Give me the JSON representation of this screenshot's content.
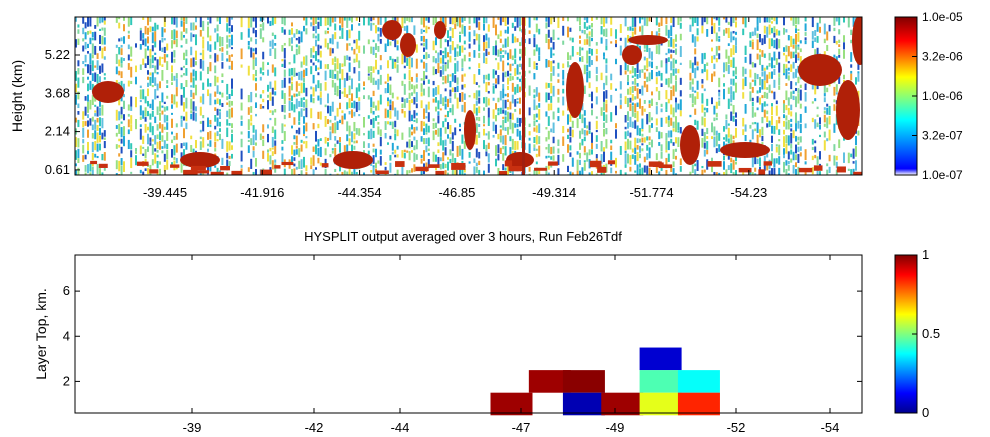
{
  "chart_data": [
    {
      "type": "heatmap",
      "title": "",
      "xlabel": "",
      "ylabel": "Height (km)",
      "x_ticks": [
        "-39.445",
        "-41.916",
        "-44.354",
        "-46.85",
        "-49.314",
        "-51.774",
        "-54.23"
      ],
      "y_ticks": [
        "5.22",
        "3.68",
        "2.14",
        "0.61"
      ],
      "colorbar_ticks": [
        "1.0e-05",
        "3.2e-06",
        "1.0e-06",
        "3.2e-07",
        "1.0e-07"
      ],
      "colorbar_scale": "log",
      "grid": false
    },
    {
      "type": "heatmap",
      "title": "HYSPLIT output averaged over 3 hours, Run Feb26Tdf",
      "xlabel": "",
      "ylabel": "Layer Top, km.",
      "x_ticks": [
        "-39",
        "-42",
        "-44",
        "-47",
        "-49",
        "-52",
        "-54"
      ],
      "y_ticks": [
        "6",
        "4",
        "2"
      ],
      "ylim": [
        0.6,
        7.6
      ],
      "colorbar_ticks": [
        "1",
        "0.5",
        "0"
      ],
      "clim": [
        0,
        1
      ],
      "grid": false,
      "cells": [
        {
          "x": -46.5,
          "y_top": 1.5,
          "value": 0.97
        },
        {
          "x": -47.4,
          "y_top": 2.5,
          "value": 0.97
        },
        {
          "x": -48.2,
          "y_top": 2.5,
          "value": 0.99
        },
        {
          "x": -48.2,
          "y_top": 1.5,
          "value": 0.05
        },
        {
          "x": -49.1,
          "y_top": 1.5,
          "value": 0.97
        },
        {
          "x": -50.0,
          "y_top": 3.5,
          "value": 0.08
        },
        {
          "x": -50.0,
          "y_top": 2.5,
          "value": 0.45
        },
        {
          "x": -50.0,
          "y_top": 1.5,
          "value": 0.6
        },
        {
          "x": -50.9,
          "y_top": 2.5,
          "value": 0.38
        },
        {
          "x": -50.9,
          "y_top": 1.5,
          "value": 0.84
        }
      ]
    }
  ]
}
